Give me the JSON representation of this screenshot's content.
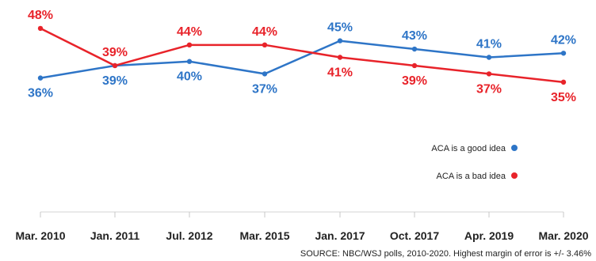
{
  "chart_data": {
    "type": "line",
    "categories": [
      "Mar. 2010",
      "Jan. 2011",
      "Jul. 2012",
      "Mar. 2015",
      "Jan. 2017",
      "Oct. 2017",
      "Apr. 2019",
      "Mar. 2020"
    ],
    "series": [
      {
        "name": "ACA is a good idea",
        "color": "#2E75C7",
        "values": [
          36,
          39,
          40,
          37,
          45,
          43,
          41,
          42
        ],
        "labels": [
          "36%",
          "39%",
          "40%",
          "37%",
          "45%",
          "43%",
          "41%",
          "42%"
        ]
      },
      {
        "name": "ACA is a bad idea",
        "color": "#E8232A",
        "values": [
          48,
          39,
          44,
          44,
          41,
          39,
          37,
          35
        ],
        "labels": [
          "48%",
          "39%",
          "44%",
          "44%",
          "41%",
          "39%",
          "37%",
          "35%"
        ]
      }
    ],
    "ylim": [
      30,
      52
    ],
    "grid": false,
    "legend_position": "right",
    "xlabel": "",
    "ylabel": ""
  },
  "source_note": "SOURCE: NBC/WSJ polls, 2010-2020. Highest margin of error is +/- 3.46%"
}
